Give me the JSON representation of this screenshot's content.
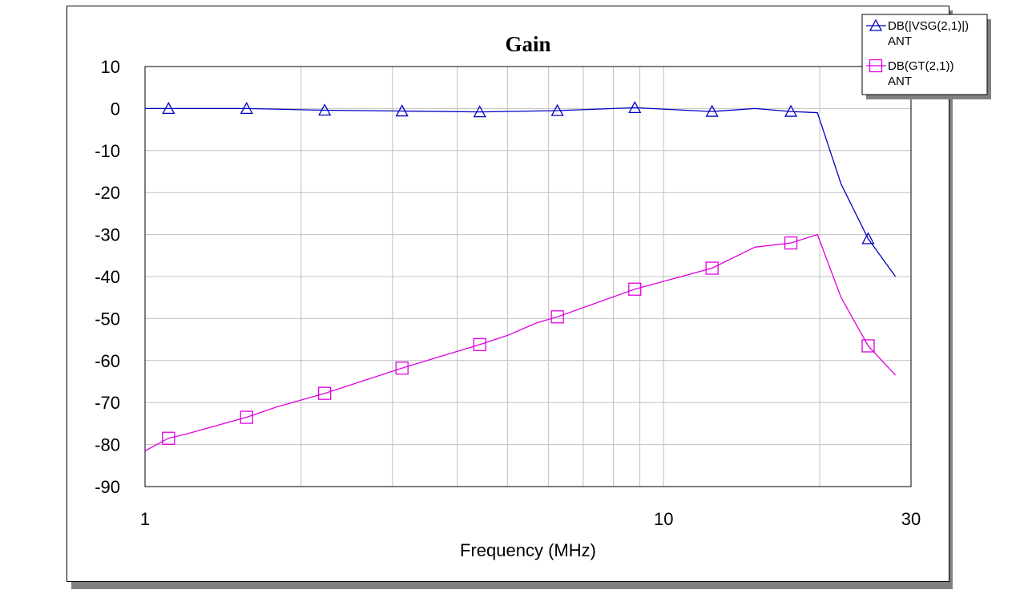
{
  "chart_data": {
    "type": "line",
    "title": "Gain",
    "xlabel": "Frequency (MHz)",
    "ylabel": "",
    "xscale": "log",
    "xlim": [
      1,
      30
    ],
    "ylim": [
      -90,
      10
    ],
    "xticks": [
      1,
      10,
      30
    ],
    "yticks": [
      10,
      0,
      -10,
      -20,
      -30,
      -40,
      -50,
      -60,
      -70,
      -80,
      -90
    ],
    "grid": true,
    "legend_position": "top-right",
    "series": [
      {
        "name": "DB(|VSG(2,1)|)",
        "sub_label": "ANT",
        "color": "#0000c0",
        "marker": "triangle",
        "x": [
          1,
          1.11,
          1.57,
          2.22,
          3.13,
          4.42,
          6.24,
          8.8,
          12.4,
          15,
          17.6,
          19.8,
          22,
          24.8,
          28
        ],
        "y": [
          0,
          0,
          0,
          -0.4,
          -0.6,
          -0.8,
          -0.5,
          0.2,
          -0.7,
          0,
          -0.7,
          -1,
          -18,
          -31,
          -40
        ]
      },
      {
        "name": "DB(GT(2,1))",
        "sub_label": "ANT",
        "color": "#e000e0",
        "marker": "square",
        "x": [
          1,
          1.11,
          1.2,
          1.57,
          1.8,
          2.22,
          3.13,
          4.42,
          5,
          5.7,
          6.24,
          8.8,
          12.4,
          15,
          17.6,
          19.8,
          22,
          24.8,
          28
        ],
        "y": [
          -81.5,
          -78.5,
          -77.5,
          -73.5,
          -71,
          -67.8,
          -61.8,
          -56.2,
          -54,
          -51,
          -49.6,
          -43,
          -38,
          -33,
          -32,
          -30,
          -45,
          -56.5,
          -63.5
        ]
      }
    ]
  }
}
